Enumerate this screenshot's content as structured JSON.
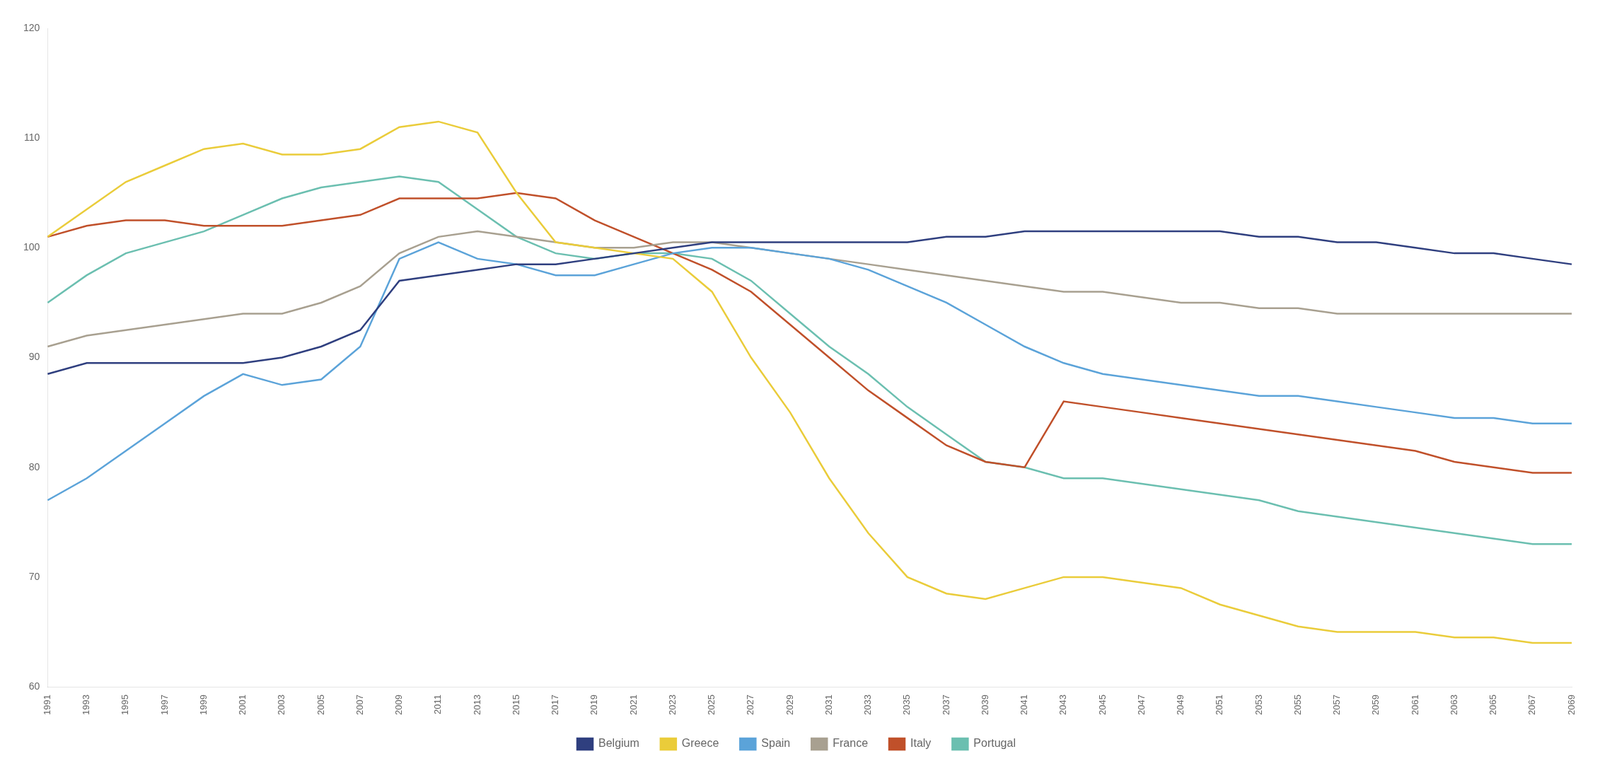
{
  "chart_data": {
    "type": "line",
    "categories": [
      1991,
      1993,
      1995,
      1997,
      1999,
      2001,
      2003,
      2005,
      2007,
      2009,
      2011,
      2013,
      2015,
      2017,
      2019,
      2021,
      2023,
      2025,
      2027,
      2029,
      2031,
      2033,
      2035,
      2037,
      2039,
      2041,
      2043,
      2045,
      2047,
      2049,
      2051,
      2053,
      2055,
      2057,
      2059,
      2061,
      2063,
      2065,
      2067,
      2069
    ],
    "series": [
      {
        "name": "Belgium",
        "color": "#2F3F7F",
        "values": [
          88.5,
          89.5,
          89.5,
          89.5,
          89.5,
          89.5,
          90.0,
          91.0,
          92.5,
          97.0,
          97.5,
          98.0,
          98.5,
          98.5,
          99.0,
          99.5,
          100.0,
          100.5,
          100.5,
          100.5,
          100.5,
          100.5,
          100.5,
          101.0,
          101.0,
          101.5,
          101.5,
          101.5,
          101.5,
          101.5,
          101.5,
          101.0,
          101.0,
          100.5,
          100.5,
          100.0,
          99.5,
          99.5,
          99.0,
          98.5
        ]
      },
      {
        "name": "Greece",
        "color": "#EACC3A",
        "values": [
          101.0,
          103.5,
          106.0,
          107.5,
          109.0,
          109.5,
          108.5,
          108.5,
          109.0,
          111.0,
          111.5,
          110.5,
          105.0,
          100.5,
          100.0,
          99.5,
          99.0,
          96.0,
          90.0,
          85.0,
          79.0,
          74.0,
          70.0,
          68.5,
          68.0,
          69.0,
          70.0,
          70.0,
          69.5,
          69.0,
          67.5,
          66.5,
          65.5,
          65.0,
          65.0,
          65.0,
          64.5,
          64.5,
          64.0,
          64.0
        ]
      },
      {
        "name": "Spain",
        "color": "#5BA3D9",
        "values": [
          77.0,
          79.0,
          81.5,
          84.0,
          86.5,
          88.5,
          87.5,
          88.0,
          91.0,
          99.0,
          100.5,
          99.0,
          98.5,
          97.5,
          97.5,
          98.5,
          99.5,
          100.0,
          100.0,
          99.5,
          99.0,
          98.0,
          96.5,
          95.0,
          93.0,
          91.0,
          89.5,
          88.5,
          88.0,
          87.5,
          87.0,
          86.5,
          86.5,
          86.0,
          85.5,
          85.0,
          84.5,
          84.5,
          84.0,
          84.0
        ]
      },
      {
        "name": "France",
        "color": "#A8A090",
        "values": [
          91.0,
          92.0,
          92.5,
          93.0,
          93.5,
          94.0,
          94.0,
          95.0,
          96.5,
          99.5,
          101.0,
          101.5,
          101.0,
          100.5,
          100.0,
          100.0,
          100.5,
          100.5,
          100.0,
          99.5,
          99.0,
          98.5,
          98.0,
          97.5,
          97.0,
          96.5,
          96.0,
          96.0,
          95.5,
          95.0,
          95.0,
          94.5,
          94.5,
          94.0,
          94.0,
          94.0,
          94.0,
          94.0,
          94.0,
          94.0
        ]
      },
      {
        "name": "Italy",
        "color": "#C0502A",
        "values": [
          101.0,
          102.0,
          102.5,
          102.5,
          102.0,
          102.0,
          102.0,
          102.5,
          103.0,
          104.5,
          104.5,
          104.5,
          105.0,
          104.5,
          102.5,
          101.0,
          99.5,
          98.0,
          96.0,
          93.0,
          90.0,
          87.0,
          84.5,
          82.0,
          80.5,
          80.0,
          86.0,
          85.5,
          85.0,
          84.5,
          84.0,
          83.5,
          83.0,
          82.5,
          82.0,
          81.5,
          80.5,
          80.0,
          79.5,
          79.5
        ]
      },
      {
        "name": "Portugal",
        "color": "#6BBFB0",
        "values": [
          95.0,
          97.5,
          99.5,
          100.5,
          101.5,
          103.0,
          104.5,
          105.5,
          106.0,
          106.5,
          106.0,
          103.5,
          101.0,
          99.5,
          99.0,
          99.5,
          99.5,
          99.0,
          97.0,
          94.0,
          91.0,
          88.5,
          85.5,
          83.0,
          80.5,
          80.0,
          79.0,
          79.0,
          78.5,
          78.0,
          77.5,
          77.0,
          76.0,
          75.5,
          75.0,
          74.5,
          74.0,
          73.5,
          73.0,
          73.0
        ]
      }
    ],
    "ylim": [
      60,
      120
    ],
    "yticks": [
      60,
      70,
      80,
      90,
      100,
      110,
      120
    ],
    "grid": false,
    "legend": "bottom"
  }
}
